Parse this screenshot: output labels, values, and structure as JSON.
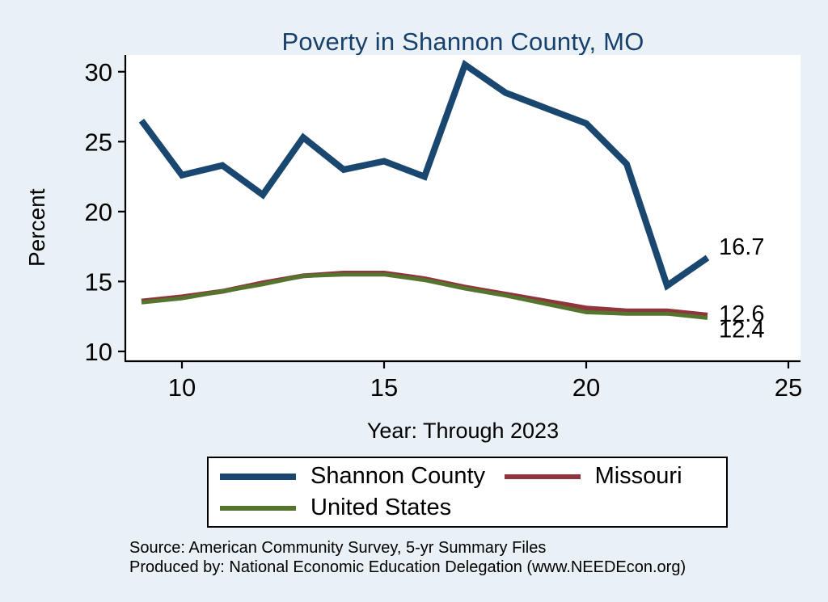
{
  "title": "Poverty in Shannon County, MO",
  "axes": {
    "ylabel": "Percent",
    "xlabel": "Year: Through 2023"
  },
  "footer": {
    "source": "Source: American Community Survey, 5-yr Summary Files",
    "produced_by": "Produced by: National Economic Education Delegation (www.NEEDEcon.org)"
  },
  "colors": {
    "background": "#e9f1f7",
    "plot_background": "#ffffff",
    "title": "#17406c",
    "axis": "#000000"
  },
  "chart_data": {
    "type": "line",
    "title": "Poverty in Shannon County, MO",
    "xlabel": "Year: Through 2023",
    "ylabel": "Percent",
    "grid": false,
    "legend_position": "bottom",
    "x": [
      9,
      10,
      11,
      12,
      13,
      14,
      15,
      16,
      17,
      18,
      19,
      20,
      21,
      22,
      23
    ],
    "x_ticks": [
      10,
      15,
      20,
      25
    ],
    "y_ticks": [
      10,
      15,
      20,
      25,
      30
    ],
    "x_range": [
      8.6,
      25.3
    ],
    "y_range": [
      9.3,
      31.2
    ],
    "series": [
      {
        "name": "Shannon County",
        "color": "#1a476f",
        "width": 8,
        "end_label": "16.7",
        "end_label_dy": -14,
        "values": [
          26.5,
          22.6,
          23.3,
          21.2,
          25.3,
          23.0,
          23.6,
          22.5,
          30.5,
          28.5,
          27.4,
          26.3,
          23.4,
          14.7,
          16.7
        ]
      },
      {
        "name": "Missouri",
        "color": "#90353b",
        "width": 6,
        "end_label": "12.6",
        "end_label_dy": -2,
        "values": [
          13.6,
          13.9,
          14.3,
          14.9,
          15.4,
          15.6,
          15.6,
          15.2,
          14.6,
          14.1,
          13.6,
          13.1,
          12.9,
          12.9,
          12.6
        ]
      },
      {
        "name": "United States",
        "color": "#55752f",
        "width": 5,
        "end_label": "12.4",
        "end_label_dy": 14,
        "values": [
          13.5,
          13.8,
          14.3,
          14.8,
          15.4,
          15.5,
          15.5,
          15.1,
          14.5,
          14.0,
          13.4,
          12.8,
          12.7,
          12.7,
          12.4
        ]
      }
    ]
  }
}
